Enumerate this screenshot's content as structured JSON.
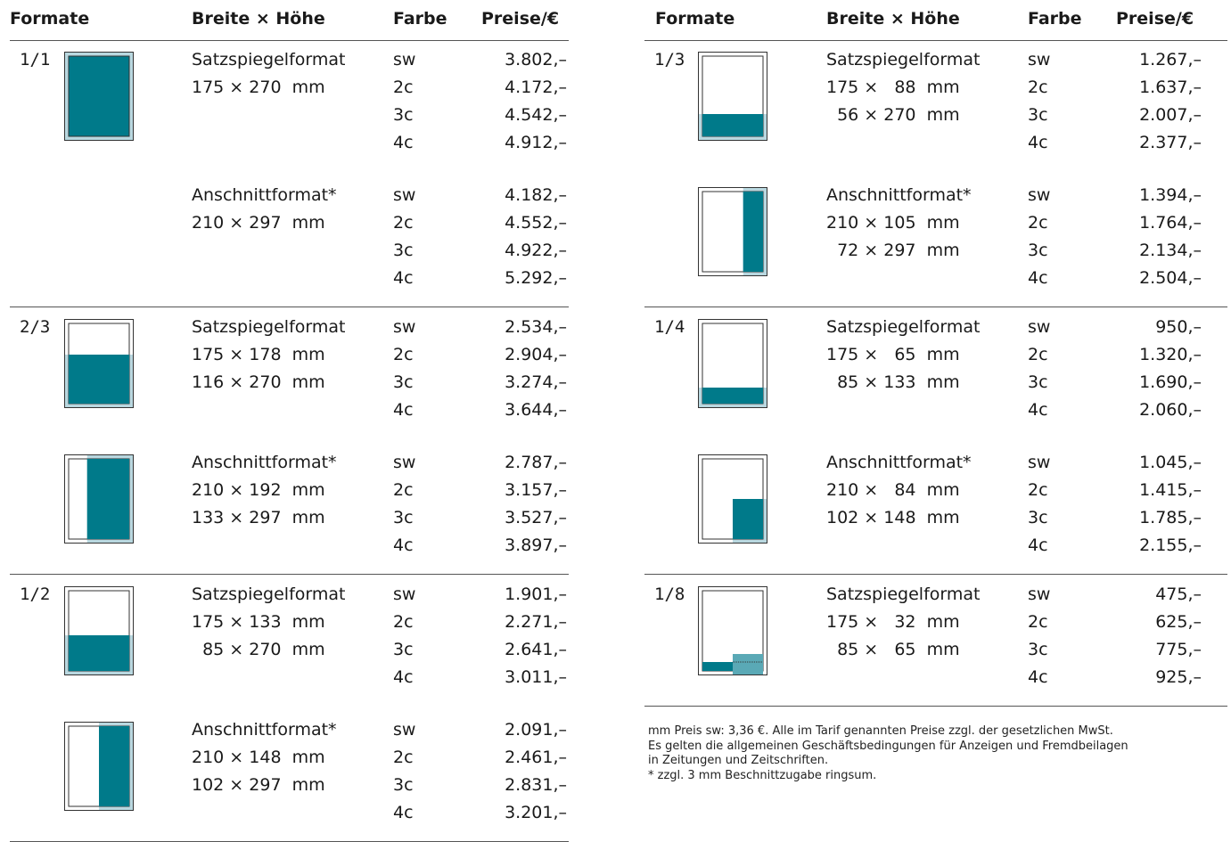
{
  "headers": {
    "format": "Formate",
    "size": "Breite × Höhe",
    "color": "Farbe",
    "price": "Preise/€"
  },
  "colors": {
    "teal": "#007a8a",
    "light": "#b9d8e0",
    "accent": "#5aa9b6"
  },
  "left": [
    {
      "fraction": "1/1",
      "blocks": [
        {
          "type": "Satzspiegelformat",
          "icon": "full-page-icon",
          "sizes": [
            "175 × 270  mm"
          ],
          "rows": [
            [
              "sw",
              "3.802,–"
            ],
            [
              "2c",
              "4.172,–"
            ],
            [
              "3c",
              "4.542,–"
            ],
            [
              "4c",
              "4.912,–"
            ]
          ]
        },
        {
          "type": "Anschnittformat*",
          "icon": "",
          "sizes": [
            "210 × 297  mm"
          ],
          "rows": [
            [
              "sw",
              "4.182,–"
            ],
            [
              "2c",
              "4.552,–"
            ],
            [
              "3c",
              "4.922,–"
            ],
            [
              "4c",
              "5.292,–"
            ]
          ]
        }
      ]
    },
    {
      "fraction": "2/3",
      "blocks": [
        {
          "type": "Satzspiegelformat",
          "icon": "two-thirds-horizontal-icon",
          "sizes": [
            "175 × 178  mm",
            "116 × 270  mm"
          ],
          "rows": [
            [
              "sw",
              "2.534,–"
            ],
            [
              "2c",
              "2.904,–"
            ],
            [
              "3c",
              "3.274,–"
            ],
            [
              "4c",
              "3.644,–"
            ]
          ]
        },
        {
          "type": "Anschnittformat*",
          "icon": "two-thirds-vertical-bleed-icon",
          "sizes": [
            "210 × 192  mm",
            "133 × 297  mm"
          ],
          "rows": [
            [
              "sw",
              "2.787,–"
            ],
            [
              "2c",
              "3.157,–"
            ],
            [
              "3c",
              "3.527,–"
            ],
            [
              "4c",
              "3.897,–"
            ]
          ]
        }
      ]
    },
    {
      "fraction": "1/2",
      "blocks": [
        {
          "type": "Satzspiegelformat",
          "icon": "half-horizontal-icon",
          "sizes": [
            "175 × 133  mm",
            "  85 × 270  mm"
          ],
          "rows": [
            [
              "sw",
              "1.901,–"
            ],
            [
              "2c",
              "2.271,–"
            ],
            [
              "3c",
              "2.641,–"
            ],
            [
              "4c",
              "3.011,–"
            ]
          ]
        },
        {
          "type": "Anschnittformat*",
          "icon": "half-vertical-bleed-icon",
          "sizes": [
            "210 × 148  mm",
            "102 × 297  mm"
          ],
          "rows": [
            [
              "sw",
              "2.091,–"
            ],
            [
              "2c",
              "2.461,–"
            ],
            [
              "3c",
              "2.831,–"
            ],
            [
              "4c",
              "3.201,–"
            ]
          ]
        }
      ]
    }
  ],
  "right": [
    {
      "fraction": "1/3",
      "blocks": [
        {
          "type": "Satzspiegelformat",
          "icon": "third-horizontal-icon",
          "sizes": [
            "175 ×   88  mm",
            "  56 × 270  mm"
          ],
          "rows": [
            [
              "sw",
              "1.267,–"
            ],
            [
              "2c",
              "1.637,–"
            ],
            [
              "3c",
              "2.007,–"
            ],
            [
              "4c",
              "2.377,–"
            ]
          ]
        },
        {
          "type": "Anschnittformat*",
          "icon": "third-vertical-bleed-icon",
          "sizes": [
            "210 × 105  mm",
            "  72 × 297  mm"
          ],
          "rows": [
            [
              "sw",
              "1.394,–"
            ],
            [
              "2c",
              "1.764,–"
            ],
            [
              "3c",
              "2.134,–"
            ],
            [
              "4c",
              "2.504,–"
            ]
          ]
        }
      ]
    },
    {
      "fraction": "1/4",
      "blocks": [
        {
          "type": "Satzspiegelformat",
          "icon": "quarter-horizontal-icon",
          "sizes": [
            "175 ×   65  mm",
            "  85 × 133  mm"
          ],
          "rows": [
            [
              "sw",
              "950,–"
            ],
            [
              "2c",
              "1.320,–"
            ],
            [
              "3c",
              "1.690,–"
            ],
            [
              "4c",
              "2.060,–"
            ]
          ]
        },
        {
          "type": "Anschnittformat*",
          "icon": "quarter-corner-bleed-icon",
          "sizes": [
            "210 ×   84  mm",
            "102 × 148  mm"
          ],
          "rows": [
            [
              "sw",
              "1.045,–"
            ],
            [
              "2c",
              "1.415,–"
            ],
            [
              "3c",
              "1.785,–"
            ],
            [
              "4c",
              "2.155,–"
            ]
          ]
        }
      ]
    },
    {
      "fraction": "1/8",
      "blocks": [
        {
          "type": "Satzspiegelformat",
          "icon": "eighth-horizontal-icon",
          "sizes": [
            "175 ×   32  mm",
            "  85 ×   65  mm"
          ],
          "rows": [
            [
              "sw",
              "475,–"
            ],
            [
              "2c",
              "625,–"
            ],
            [
              "3c",
              "775,–"
            ],
            [
              "4c",
              "925,–"
            ]
          ]
        }
      ]
    }
  ],
  "notes": [
    "mm Preis sw: 3,36 €. Alle im Tarif genannten Preise zzgl. der gesetzlichen MwSt.",
    "Es gelten die allgemeinen Geschäftsbedingungen für Anzeigen und Fremdbeilagen",
    "in Zeitungen und Zeitschriften.",
    "* zzgl. 3 mm Beschnittzugabe ringsum."
  ]
}
